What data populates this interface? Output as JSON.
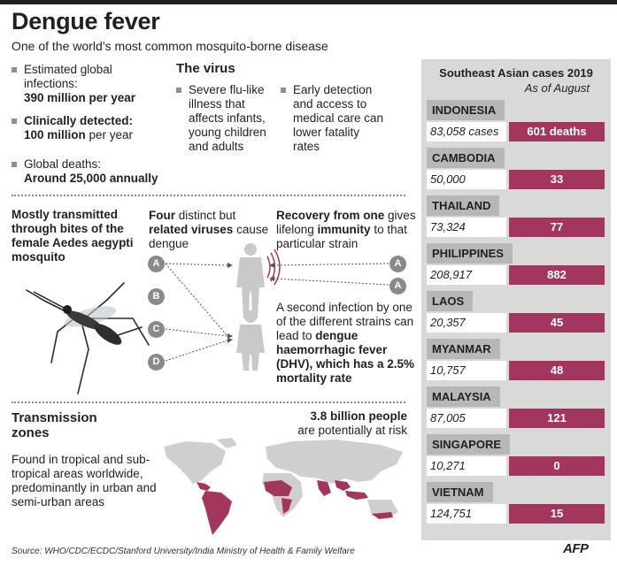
{
  "title": "Dengue fever",
  "subtitle": "One of the world’s most common mosquito-borne disease",
  "stats": {
    "infections_label": "Estimated global infections:",
    "infections_value": "390 million per year",
    "clinical_label": "Clinically detected:",
    "clinical_value": "100 million",
    "clinical_suffix": " per year",
    "deaths_label": "Global deaths:",
    "deaths_value": "Around 25,000",
    "deaths_suffix": "  annually"
  },
  "virus": {
    "heading": "The virus",
    "bullet1": "Severe flu-like illness that affects infants, young children and adults",
    "bullet2": "Early detection and access to medical care can lower fatality rates"
  },
  "transmission": {
    "mosquito_text": "Mostly transmitted through bites of the female Aedes aegypti mosquito",
    "four_a": "Four",
    "four_b": " distinct but ",
    "four_c": "related viruses",
    "four_d": " cause dengue",
    "recovery_a": "Recovery from one",
    "recovery_b": " gives lifelong ",
    "recovery_c": "immunity",
    "recovery_d": " to that particular strain",
    "second_a": "A second infection by one of the different strains can lead to ",
    "second_b": "dengue haemorrhagic fever (DHV), which has a 2.5% mortality rate",
    "strains": [
      "A",
      "B",
      "C",
      "D"
    ],
    "recovered_strain": "A",
    "reinfection_strain": "A"
  },
  "zones": {
    "heading_1": "Transmission",
    "heading_2": "zones",
    "text": "Found in tropical and sub-tropical areas worldwide, predominantly in urban and semi-urban areas",
    "risk_a": "3.8 billion people",
    "risk_b": "are potentially at risk"
  },
  "panel": {
    "heading": "Southeast Asian cases 2019",
    "sub": "As of August",
    "countries": [
      {
        "name": "INDONESIA",
        "cases": "83,058 cases",
        "deaths": "601 deaths"
      },
      {
        "name": "CAMBODIA",
        "cases": "50,000",
        "deaths": "33"
      },
      {
        "name": "THAILAND",
        "cases": "73,324",
        "deaths": "77"
      },
      {
        "name": "PHILIPPINES",
        "cases": "208,917",
        "deaths": "882"
      },
      {
        "name": "LAOS",
        "cases": "20,357",
        "deaths": "45"
      },
      {
        "name": "MYANMAR",
        "cases": "10,757",
        "deaths": "48"
      },
      {
        "name": "MALAYSIA",
        "cases": "87,005",
        "deaths": "121"
      },
      {
        "name": "SINGAPORE",
        "cases": "10,271",
        "deaths": "0"
      },
      {
        "name": "VIETNAM",
        "cases": "124,751",
        "deaths": "15"
      }
    ]
  },
  "source": "Source: WHO/CDC/ECDC/Stanford University/India Ministry of Health & Family Welfare",
  "logo": "AFP",
  "colors": {
    "accent": "#a3365f",
    "panel_bg": "#d9d9d9",
    "label_bg": "#b7b7b7",
    "bullet": "#8e8e8e"
  }
}
